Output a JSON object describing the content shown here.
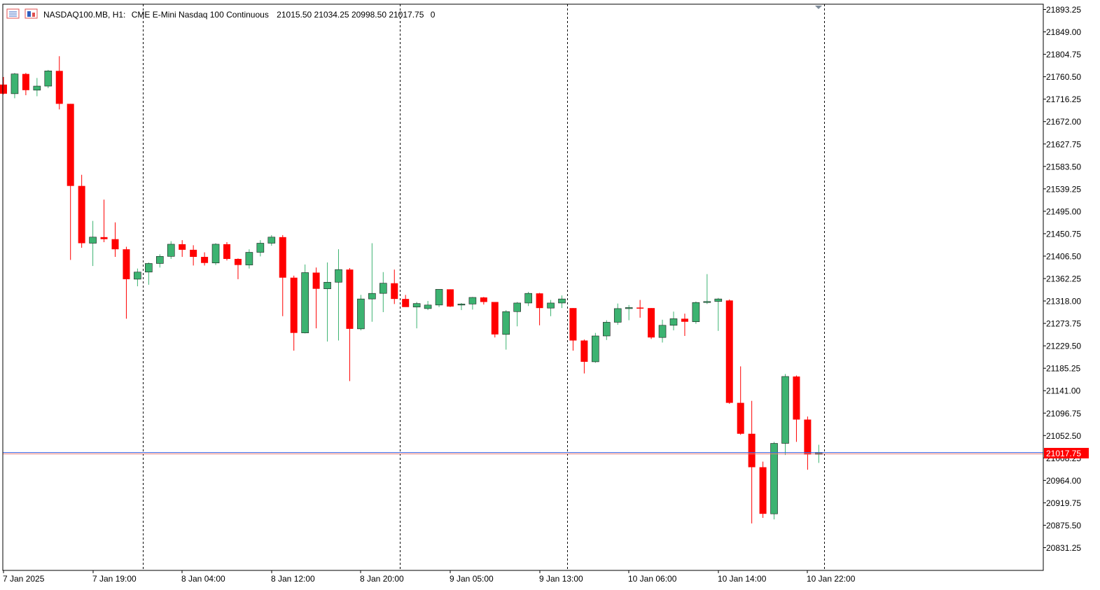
{
  "header": {
    "symbol": "NASDAQ100.MB, H1:",
    "description": "CME E-Mini Nasdaq 100 Continuous",
    "ohlc": "21015.50 21034.25 20998.50 21017.75",
    "volume": "0",
    "icons": [
      "chart-list-icon",
      "chart-window-icon"
    ]
  },
  "colors": {
    "bull": "#3cb371",
    "bear": "#ff0000",
    "outline": "#000000",
    "grid_separator": "#000000",
    "price_line_blue": "#4169e1",
    "price_line_red": "#e07a7a",
    "price_label_bg": "#ff0000",
    "price_label_text": "#ffffff"
  },
  "chart_data": {
    "type": "candlestick",
    "timeframe": "H1",
    "last_price": 21017.75,
    "last_price_label": "21017.75",
    "y_ticks": [
      "21893.25",
      "21849.00",
      "21804.75",
      "21760.50",
      "21716.25",
      "21672.00",
      "21627.75",
      "21583.50",
      "21539.25",
      "21495.00",
      "21450.75",
      "21406.50",
      "21362.25",
      "21318.00",
      "21273.75",
      "21229.50",
      "21185.25",
      "21141.00",
      "21096.75",
      "21052.50",
      "21008.25",
      "20964.00",
      "20919.75",
      "20875.50",
      "20831.25"
    ],
    "ylim": [
      20809,
      21905
    ],
    "x_ticks": [
      {
        "i": 0,
        "label": "7 Jan 2025"
      },
      {
        "i": 8,
        "label": "7 Jan 19:00"
      },
      {
        "i": 16,
        "label": "8 Jan 04:00"
      },
      {
        "i": 24,
        "label": "8 Jan 12:00"
      },
      {
        "i": 32,
        "label": "8 Jan 20:00"
      },
      {
        "i": 40,
        "label": "9 Jan 05:00"
      },
      {
        "i": 48,
        "label": "9 Jan 13:00"
      },
      {
        "i": 56,
        "label": "10 Jan 06:00"
      },
      {
        "i": 64,
        "label": "10 Jan 14:00"
      },
      {
        "i": 72,
        "label": "10 Jan 22:00"
      }
    ],
    "day_separators_after": [
      12.5,
      35.5,
      50.5,
      73.5
    ],
    "candles": [
      {
        "o": 21745,
        "h": 21760,
        "l": 21726,
        "c": 21727
      },
      {
        "o": 21727,
        "h": 21768,
        "l": 21718,
        "c": 21766
      },
      {
        "o": 21766,
        "h": 21768,
        "l": 21724,
        "c": 21734
      },
      {
        "o": 21734,
        "h": 21758,
        "l": 21722,
        "c": 21742
      },
      {
        "o": 21742,
        "h": 21774,
        "l": 21738,
        "c": 21772
      },
      {
        "o": 21772,
        "h": 21801,
        "l": 21696,
        "c": 21707
      },
      {
        "o": 21707,
        "h": 21707,
        "l": 21399,
        "c": 21545
      },
      {
        "o": 21545,
        "h": 21567,
        "l": 21423,
        "c": 21432
      },
      {
        "o": 21432,
        "h": 21476,
        "l": 21387,
        "c": 21444
      },
      {
        "o": 21444,
        "h": 21518,
        "l": 21434,
        "c": 21440
      },
      {
        "o": 21440,
        "h": 21473,
        "l": 21405,
        "c": 21420
      },
      {
        "o": 21420,
        "h": 21425,
        "l": 21283,
        "c": 21361
      },
      {
        "o": 21361,
        "h": 21382,
        "l": 21347,
        "c": 21375
      },
      {
        "o": 21375,
        "h": 21394,
        "l": 21350,
        "c": 21392
      },
      {
        "o": 21392,
        "h": 21410,
        "l": 21384,
        "c": 21406
      },
      {
        "o": 21406,
        "h": 21436,
        "l": 21401,
        "c": 21430
      },
      {
        "o": 21430,
        "h": 21438,
        "l": 21405,
        "c": 21419
      },
      {
        "o": 21419,
        "h": 21428,
        "l": 21388,
        "c": 21405
      },
      {
        "o": 21405,
        "h": 21414,
        "l": 21388,
        "c": 21393
      },
      {
        "o": 21393,
        "h": 21432,
        "l": 21389,
        "c": 21430
      },
      {
        "o": 21430,
        "h": 21434,
        "l": 21398,
        "c": 21401
      },
      {
        "o": 21401,
        "h": 21402,
        "l": 21361,
        "c": 21389
      },
      {
        "o": 21389,
        "h": 21420,
        "l": 21382,
        "c": 21414
      },
      {
        "o": 21414,
        "h": 21438,
        "l": 21406,
        "c": 21432
      },
      {
        "o": 21432,
        "h": 21448,
        "l": 21427,
        "c": 21444
      },
      {
        "o": 21444,
        "h": 21448,
        "l": 21288,
        "c": 21364
      },
      {
        "o": 21364,
        "h": 21368,
        "l": 21220,
        "c": 21255
      },
      {
        "o": 21255,
        "h": 21390,
        "l": 21254,
        "c": 21374
      },
      {
        "o": 21374,
        "h": 21384,
        "l": 21264,
        "c": 21342
      },
      {
        "o": 21342,
        "h": 21394,
        "l": 21238,
        "c": 21355
      },
      {
        "o": 21355,
        "h": 21420,
        "l": 21240,
        "c": 21380
      },
      {
        "o": 21380,
        "h": 21383,
        "l": 21160,
        "c": 21263
      },
      {
        "o": 21263,
        "h": 21330,
        "l": 21260,
        "c": 21322
      },
      {
        "o": 21322,
        "h": 21432,
        "l": 21277,
        "c": 21333
      },
      {
        "o": 21333,
        "h": 21375,
        "l": 21296,
        "c": 21353
      },
      {
        "o": 21353,
        "h": 21380,
        "l": 21312,
        "c": 21322
      },
      {
        "o": 21322,
        "h": 21330,
        "l": 21310,
        "c": 21306
      },
      {
        "o": 21306,
        "h": 21316,
        "l": 21264,
        "c": 21313
      },
      {
        "o": 21303,
        "h": 21318,
        "l": 21300,
        "c": 21310
      },
      {
        "o": 21310,
        "h": 21340,
        "l": 21306,
        "c": 21341
      },
      {
        "o": 21341,
        "h": 21341,
        "l": 21306,
        "c": 21307
      },
      {
        "o": 21312,
        "h": 21314,
        "l": 21300,
        "c": 21312
      },
      {
        "o": 21312,
        "h": 21326,
        "l": 21301,
        "c": 21325
      },
      {
        "o": 21325,
        "h": 21326,
        "l": 21311,
        "c": 21316
      },
      {
        "o": 21316,
        "h": 21316,
        "l": 21246,
        "c": 21252
      },
      {
        "o": 21252,
        "h": 21300,
        "l": 21222,
        "c": 21297
      },
      {
        "o": 21297,
        "h": 21316,
        "l": 21268,
        "c": 21314
      },
      {
        "o": 21314,
        "h": 21336,
        "l": 21308,
        "c": 21333
      },
      {
        "o": 21333,
        "h": 21334,
        "l": 21270,
        "c": 21304
      },
      {
        "o": 21304,
        "h": 21320,
        "l": 21288,
        "c": 21314
      },
      {
        "o": 21314,
        "h": 21329,
        "l": 21304,
        "c": 21322
      },
      {
        "o": 21304,
        "h": 21304,
        "l": 21220,
        "c": 21240
      },
      {
        "o": 21240,
        "h": 21242,
        "l": 21175,
        "c": 21198
      },
      {
        "o": 21198,
        "h": 21255,
        "l": 21196,
        "c": 21249
      },
      {
        "o": 21249,
        "h": 21280,
        "l": 21241,
        "c": 21276
      },
      {
        "o": 21276,
        "h": 21313,
        "l": 21271,
        "c": 21303
      },
      {
        "o": 21303,
        "h": 21310,
        "l": 21280,
        "c": 21305
      },
      {
        "o": 21305,
        "h": 21320,
        "l": 21285,
        "c": 21304
      },
      {
        "o": 21304,
        "h": 21304,
        "l": 21243,
        "c": 21246
      },
      {
        "o": 21246,
        "h": 21281,
        "l": 21236,
        "c": 21270
      },
      {
        "o": 21270,
        "h": 21297,
        "l": 21260,
        "c": 21283
      },
      {
        "o": 21283,
        "h": 21293,
        "l": 21249,
        "c": 21277
      },
      {
        "o": 21277,
        "h": 21317,
        "l": 21273,
        "c": 21315
      },
      {
        "o": 21315,
        "h": 21371,
        "l": 21312,
        "c": 21317
      },
      {
        "o": 21317,
        "h": 21324,
        "l": 21259,
        "c": 21322
      },
      {
        "o": 21319,
        "h": 21321,
        "l": 21115,
        "c": 21117
      },
      {
        "o": 21117,
        "h": 21189,
        "l": 21054,
        "c": 21056
      },
      {
        "o": 21056,
        "h": 21121,
        "l": 20879,
        "c": 20990
      },
      {
        "o": 20990,
        "h": 21001,
        "l": 20890,
        "c": 20898
      },
      {
        "o": 20898,
        "h": 21040,
        "l": 20887,
        "c": 21037
      },
      {
        "o": 21037,
        "h": 21174,
        "l": 21014,
        "c": 21169
      },
      {
        "o": 21169,
        "h": 21171,
        "l": 21040,
        "c": 21084
      },
      {
        "o": 21084,
        "h": 21090,
        "l": 20985,
        "c": 21015
      },
      {
        "o": 21015.5,
        "h": 21034.25,
        "l": 20998.5,
        "c": 21017.75
      }
    ]
  }
}
